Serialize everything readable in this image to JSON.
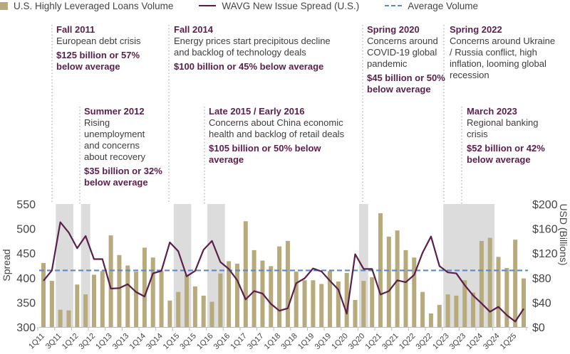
{
  "legend": {
    "bars": "U.S. Highly Leveraged Loans Volume",
    "line": "WAVG New Issue Spread (U.S.)",
    "avg": "Average Volume"
  },
  "colors": {
    "bars": "#b7aa7c",
    "line": "#5a1f4a",
    "avg": "#5b8bc6",
    "shade": "#dcdcdc",
    "annotation": "#5c1f4a"
  },
  "annotations": [
    {
      "title": "Fall 2011",
      "text": "European debt crisis",
      "value": "$125 billion or 57% below average"
    },
    {
      "title": "Summer 2012",
      "text": "Rising unemployment and concerns about recovery",
      "value": "$35 billion or 32% below average"
    },
    {
      "title": "Fall 2014",
      "text": "Energy prices start precipitous decline and backlog of technology deals",
      "value": "$100 billion or 45% below average"
    },
    {
      "title": "Late 2015 / Early 2016",
      "text": "Concerns about China economic health and backlog of retail deals",
      "value": "$105 billion or 50% below average"
    },
    {
      "title": "Spring 2020",
      "text": "Concerns around COVID-19 global pandemic",
      "value": "$45 billion or 50% below average"
    },
    {
      "title": "Spring 2022",
      "text": "Concerns around Ukraine / Russia conflict, high inflation, looming global recession",
      "value": ""
    },
    {
      "title": "March 2023",
      "text": "Regional banking crisis",
      "value": "$52 billion or 42% below average"
    }
  ],
  "chart_data": {
    "type": "bar+line",
    "categories": [
      "1Q11",
      "2Q11",
      "3Q11",
      "4Q11",
      "1Q12",
      "2Q12",
      "3Q12",
      "4Q12",
      "1Q13",
      "2Q13",
      "3Q13",
      "4Q13",
      "1Q14",
      "2Q14",
      "3Q14",
      "4Q14",
      "1Q15",
      "2Q15",
      "3Q15",
      "4Q15",
      "1Q16",
      "2Q16",
      "3Q16",
      "4Q16",
      "1Q17",
      "2Q17",
      "3Q17",
      "4Q17",
      "1Q18",
      "2Q18",
      "3Q18",
      "4Q18",
      "1Q19",
      "2Q19",
      "3Q19",
      "4Q19",
      "1Q20",
      "2Q20",
      "3Q20",
      "4Q20",
      "1Q21",
      "2Q21",
      "3Q21",
      "4Q21",
      "1Q22",
      "2Q22",
      "3Q22",
      "4Q22",
      "1Q23",
      "2Q23",
      "3Q23",
      "4Q23",
      "1Q24",
      "2Q24",
      "3Q24",
      "4Q24",
      "1Q25",
      "2Q25"
    ],
    "x_tick_labels": [
      "1Q11",
      "3Q11",
      "1Q12",
      "3Q12",
      "1Q13",
      "3Q13",
      "1Q14",
      "3Q14",
      "1Q15",
      "3Q15",
      "1Q16",
      "3Q16",
      "1Q17",
      "3Q17",
      "1Q18",
      "3Q18",
      "1Q19",
      "3Q19",
      "1Q20",
      "3Q20",
      "1Q21",
      "3Q21",
      "1Q22",
      "3Q22",
      "1Q23",
      "3Q23",
      "1Q24",
      "3Q24",
      "1Q25"
    ],
    "series": [
      {
        "name": "U.S. Highly Leveraged Loans Volume",
        "type": "bar",
        "axis": "right",
        "values": [
          104,
          75,
          28,
          27,
          69,
          53,
          85,
          91,
          149,
          117,
          100,
          90,
          129,
          113,
          91,
          43,
          57,
          85,
          66,
          51,
          41,
          87,
          107,
          103,
          172,
          125,
          108,
          99,
          131,
          140,
          90,
          76,
          76,
          70,
          91,
          74,
          88,
          44,
          75,
          81,
          185,
          147,
          157,
          125,
          113,
          57,
          22,
          36,
          53,
          51,
          76,
          56,
          140,
          145,
          114,
          96,
          142,
          79
        ]
      },
      {
        "name": "WAVG New Issue Spread (U.S.)",
        "type": "line",
        "axis": "left",
        "values": [
          394,
          415,
          513,
          492,
          460,
          485,
          438,
          438,
          378,
          379,
          387,
          371,
          362,
          409,
          414,
          472,
          454,
          403,
          414,
          457,
          475,
          432,
          418,
          395,
          356,
          373,
          368,
          347,
          333,
          338,
          389,
          399,
          419,
          413,
          394,
          376,
          327,
          448,
          418,
          418,
          366,
          373,
          395,
          391,
          406,
          451,
          484,
          424,
          411,
          409,
          385,
          364,
          348,
          331,
          341,
          324,
          311,
          337
        ]
      },
      {
        "name": "Average Volume",
        "type": "reference-line",
        "axis": "right",
        "value": 92
      }
    ],
    "shaded_periods": [
      [
        "3Q11",
        "4Q11"
      ],
      [
        "2Q12",
        "2Q12"
      ],
      [
        "1Q15",
        "2Q15"
      ],
      [
        "1Q16",
        "2Q16"
      ],
      [
        "3Q20",
        "3Q20"
      ],
      [
        "1Q23",
        "2Q24"
      ]
    ],
    "ylabel_left": "Spread",
    "ylim_left": [
      300,
      550
    ],
    "yticks_left": [
      "550",
      "500",
      "450",
      "400",
      "350",
      "300"
    ],
    "ylabel_right": "USD (Billions)",
    "ylim_right": [
      0,
      200
    ],
    "yticks_right": [
      "$200",
      "$160",
      "$120",
      "$80",
      "$40",
      "$0"
    ],
    "grid": false,
    "legend": "top"
  }
}
